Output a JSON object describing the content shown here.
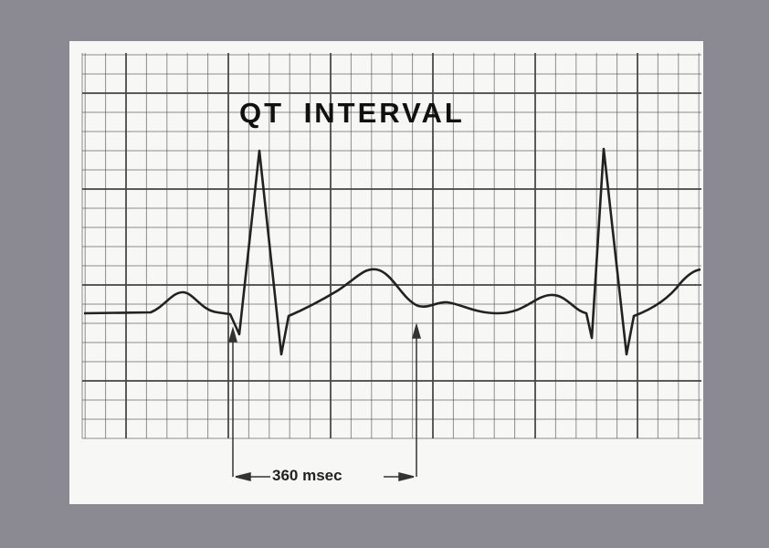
{
  "title": "QT INTERVAL",
  "measurement_label": "360 msec",
  "colors": {
    "background": "#8b8a93",
    "paper": "#f7f7f5",
    "grid": "#4a4a4a",
    "trace": "#222222"
  }
}
